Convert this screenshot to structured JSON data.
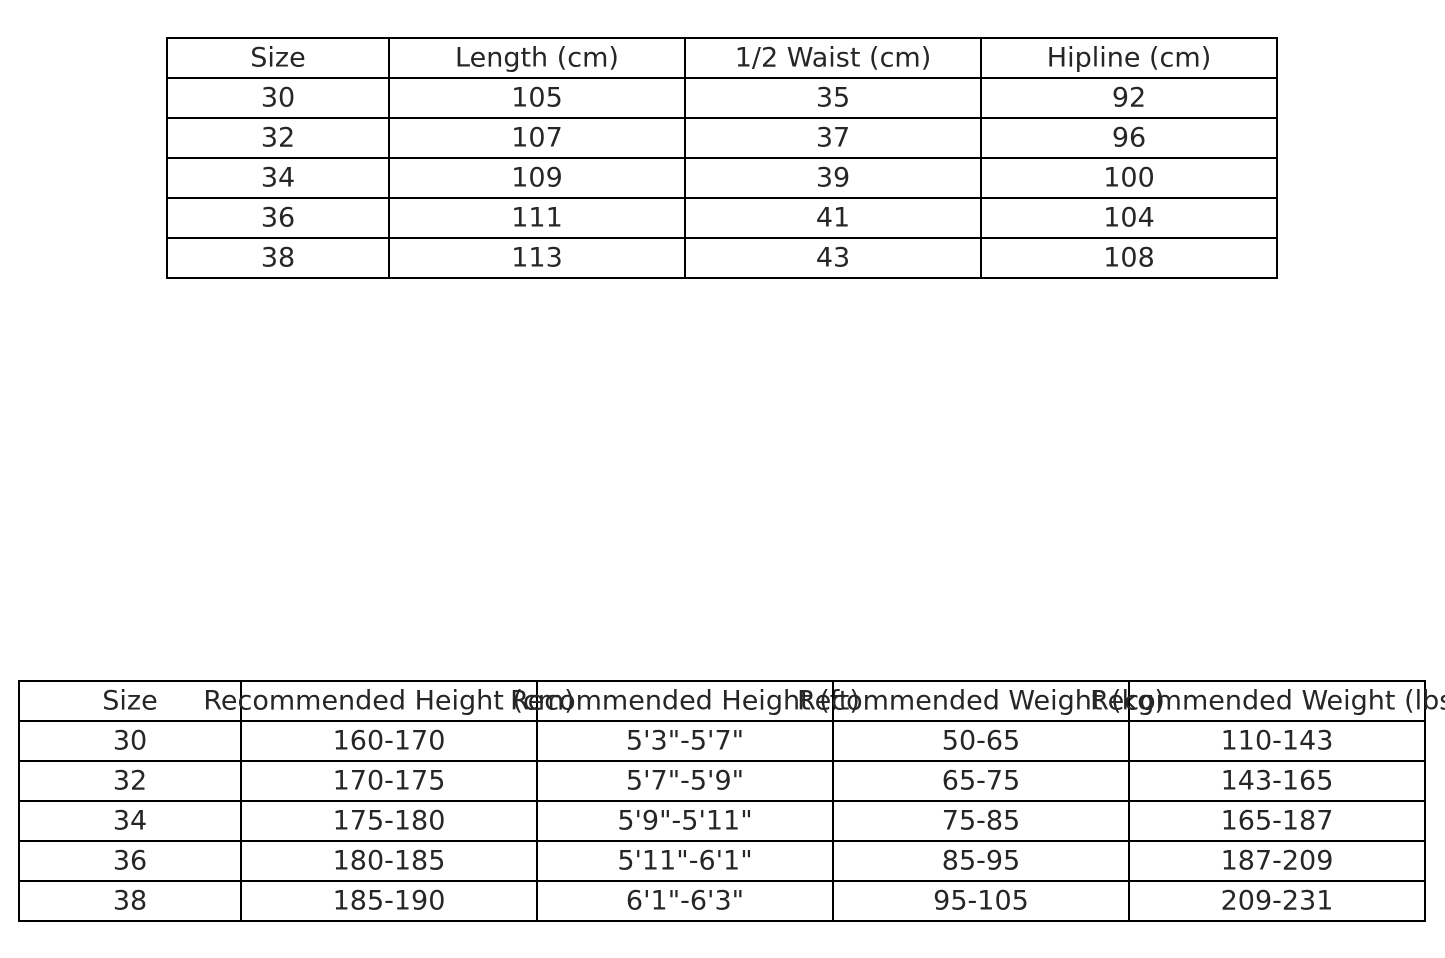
{
  "chart_data": [
    {
      "type": "table",
      "columns": [
        "Size",
        "Length (cm)",
        "1/2 Waist (cm)",
        "Hipline (cm)"
      ],
      "rows": [
        [
          "30",
          "105",
          "35",
          "92"
        ],
        [
          "32",
          "107",
          "37",
          "96"
        ],
        [
          "34",
          "109",
          "39",
          "100"
        ],
        [
          "36",
          "111",
          "41",
          "104"
        ],
        [
          "38",
          "113",
          "43",
          "108"
        ]
      ]
    },
    {
      "type": "table",
      "columns": [
        "Size",
        "Recommended Height (cm)",
        "Recommended Height (ft)",
        "Recommended Weight (kg)",
        "Recommended Weight (lbs)"
      ],
      "rows": [
        [
          "30",
          "160-170",
          "5'3\"-5'7\"",
          "50-65",
          "110-143"
        ],
        [
          "32",
          "170-175",
          "5'7\"-5'9\"",
          "65-75",
          "143-165"
        ],
        [
          "34",
          "175-180",
          "5'9\"-5'11\"",
          "75-85",
          "165-187"
        ],
        [
          "36",
          "180-185",
          "5'11\"-6'1\"",
          "85-95",
          "187-209"
        ],
        [
          "38",
          "185-190",
          "6'1\"-6'3\"",
          "95-105",
          "209-231"
        ]
      ]
    }
  ]
}
